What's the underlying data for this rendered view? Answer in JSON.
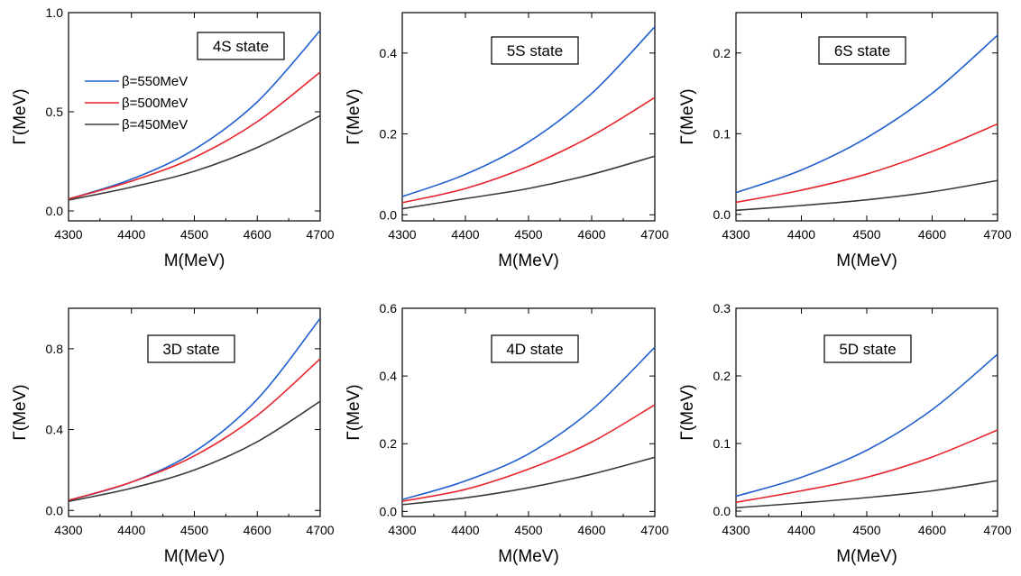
{
  "chart_data": [
    {
      "type": "line",
      "label": "4S state",
      "xlabel": "M(MeV)",
      "ylabel": "Γ(MeV)",
      "xlim": [
        4300,
        4700
      ],
      "ylim": [
        -0.05,
        1.0
      ],
      "xticks": [
        "4300",
        "4400",
        "4500",
        "4600",
        "4700"
      ],
      "yticks": [
        {
          "value": 0.0,
          "label": "0.0"
        },
        {
          "value": 0.5,
          "label": "0.5"
        },
        {
          "value": 1.0,
          "label": "1.0"
        }
      ],
      "x": [
        4300,
        4400,
        4500,
        4600,
        4700
      ],
      "legend": {
        "placement": "upper-left"
      },
      "series": [
        {
          "name": "β=550MeV",
          "color": "#1f5fd0",
          "values": [
            0.06,
            0.16,
            0.31,
            0.55,
            0.91
          ]
        },
        {
          "name": "β=500MeV",
          "color": "#e8232a",
          "values": [
            0.06,
            0.15,
            0.27,
            0.45,
            0.7
          ]
        },
        {
          "name": "β=450MeV",
          "color": "#3a3a3a",
          "values": [
            0.055,
            0.12,
            0.2,
            0.32,
            0.48
          ]
        }
      ]
    },
    {
      "type": "line",
      "label": "5S state",
      "xlabel": "M(MeV)",
      "ylabel": "Γ(MeV)",
      "xlim": [
        4300,
        4700
      ],
      "ylim": [
        -0.015,
        0.5
      ],
      "xticks": [
        "4300",
        "4400",
        "4500",
        "4600",
        "4700"
      ],
      "yticks": [
        {
          "value": 0.0,
          "label": "0.0"
        },
        {
          "value": 0.2,
          "label": "0.2"
        },
        {
          "value": 0.4,
          "label": "0.4"
        }
      ],
      "x": [
        4300,
        4400,
        4500,
        4600,
        4700
      ],
      "series": [
        {
          "color": "#1f5fd0",
          "values": [
            0.045,
            0.1,
            0.18,
            0.3,
            0.465
          ]
        },
        {
          "color": "#e8232a",
          "values": [
            0.03,
            0.065,
            0.12,
            0.195,
            0.29
          ]
        },
        {
          "color": "#3a3a3a",
          "values": [
            0.015,
            0.04,
            0.065,
            0.1,
            0.145
          ]
        }
      ]
    },
    {
      "type": "line",
      "label": "6S state",
      "xlabel": "M(MeV)",
      "ylabel": "Γ(MeV)",
      "xlim": [
        4300,
        4700
      ],
      "ylim": [
        -0.008,
        0.25
      ],
      "xticks": [
        "4300",
        "4400",
        "4500",
        "4600",
        "4700"
      ],
      "yticks": [
        {
          "value": 0.0,
          "label": "0.0"
        },
        {
          "value": 0.1,
          "label": "0.1"
        },
        {
          "value": 0.2,
          "label": "0.2"
        }
      ],
      "x": [
        4300,
        4400,
        4500,
        4600,
        4700
      ],
      "series": [
        {
          "color": "#1f5fd0",
          "values": [
            0.027,
            0.055,
            0.095,
            0.15,
            0.222
          ]
        },
        {
          "color": "#e8232a",
          "values": [
            0.015,
            0.03,
            0.05,
            0.078,
            0.112
          ]
        },
        {
          "color": "#3a3a3a",
          "values": [
            0.005,
            0.011,
            0.018,
            0.028,
            0.042
          ]
        }
      ]
    },
    {
      "type": "line",
      "label": "3D state",
      "xlabel": "M(MeV)",
      "ylabel": "Γ(MeV)",
      "xlim": [
        4300,
        4700
      ],
      "ylim": [
        -0.03,
        1.0
      ],
      "xticks": [
        "4300",
        "4400",
        "4500",
        "4600",
        "4700"
      ],
      "yticks": [
        {
          "value": 0.0,
          "label": "0.0"
        },
        {
          "value": 0.4,
          "label": "0.4"
        },
        {
          "value": 0.8,
          "label": "0.8"
        }
      ],
      "x": [
        4300,
        4400,
        4500,
        4600,
        4700
      ],
      "series": [
        {
          "color": "#1f5fd0",
          "values": [
            0.05,
            0.14,
            0.29,
            0.55,
            0.95
          ]
        },
        {
          "color": "#e8232a",
          "values": [
            0.05,
            0.14,
            0.27,
            0.47,
            0.75
          ]
        },
        {
          "color": "#3a3a3a",
          "values": [
            0.045,
            0.11,
            0.2,
            0.34,
            0.54
          ]
        }
      ]
    },
    {
      "type": "line",
      "label": "4D state",
      "xlabel": "M(MeV)",
      "ylabel": "Γ(MeV)",
      "xlim": [
        4300,
        4700
      ],
      "ylim": [
        -0.015,
        0.6
      ],
      "xticks": [
        "4300",
        "4400",
        "4500",
        "4600",
        "4700"
      ],
      "yticks": [
        {
          "value": 0.0,
          "label": "0.0"
        },
        {
          "value": 0.2,
          "label": "0.2"
        },
        {
          "value": 0.4,
          "label": "0.4"
        },
        {
          "value": 0.6,
          "label": "0.6"
        }
      ],
      "x": [
        4300,
        4400,
        4500,
        4600,
        4700
      ],
      "series": [
        {
          "color": "#1f5fd0",
          "values": [
            0.035,
            0.09,
            0.17,
            0.3,
            0.485
          ]
        },
        {
          "color": "#e8232a",
          "values": [
            0.03,
            0.065,
            0.125,
            0.205,
            0.315
          ]
        },
        {
          "color": "#3a3a3a",
          "values": [
            0.02,
            0.04,
            0.07,
            0.11,
            0.16
          ]
        }
      ]
    },
    {
      "type": "line",
      "label": "5D state",
      "xlabel": "M(MeV)",
      "ylabel": "Γ(MeV)",
      "xlim": [
        4300,
        4700
      ],
      "ylim": [
        -0.008,
        0.3
      ],
      "xticks": [
        "4300",
        "4400",
        "4500",
        "4600",
        "4700"
      ],
      "yticks": [
        {
          "value": 0.0,
          "label": "0.0"
        },
        {
          "value": 0.1,
          "label": "0.1"
        },
        {
          "value": 0.2,
          "label": "0.2"
        },
        {
          "value": 0.3,
          "label": "0.3"
        }
      ],
      "x": [
        4300,
        4400,
        4500,
        4600,
        4700
      ],
      "series": [
        {
          "color": "#1f5fd0",
          "values": [
            0.022,
            0.05,
            0.09,
            0.15,
            0.232
          ]
        },
        {
          "color": "#e8232a",
          "values": [
            0.013,
            0.03,
            0.05,
            0.08,
            0.12
          ]
        },
        {
          "color": "#3a3a3a",
          "values": [
            0.005,
            0.012,
            0.02,
            0.03,
            0.045
          ]
        }
      ]
    }
  ]
}
